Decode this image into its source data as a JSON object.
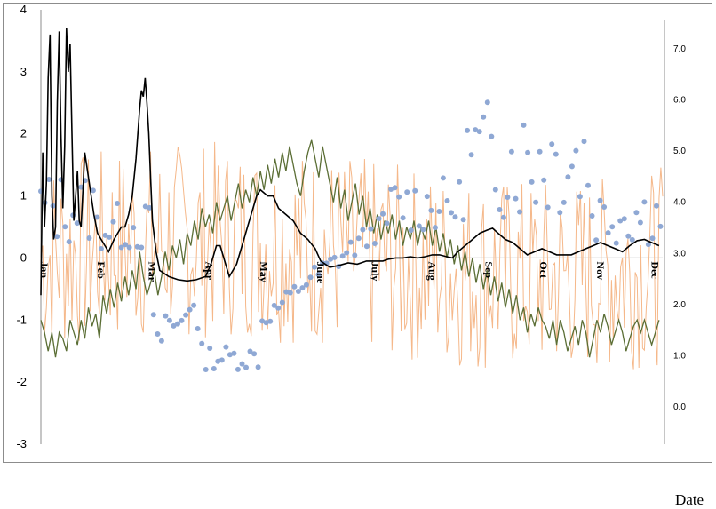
{
  "chart_data": {
    "type": "line",
    "xlabel": "Date",
    "left_axis": {
      "ticks": [
        4,
        3,
        2,
        1,
        0,
        -1,
        -2,
        -3
      ],
      "ylim": [
        -3,
        4
      ]
    },
    "right_axis": {
      "ticks": [
        "7.0",
        "6.0",
        "5.0",
        "4.0",
        "3.0",
        "2.0",
        "1.0",
        "0.0"
      ],
      "ylim": [
        -0.75,
        7.75
      ]
    },
    "months": [
      "Jan",
      "Feb",
      "Mar",
      "Apr",
      "May",
      "June",
      "July",
      "Aug",
      "Sep",
      "Oct",
      "Nov",
      "Dec"
    ],
    "month_start_days": [
      0,
      31,
      59,
      90,
      120,
      151,
      181,
      212,
      243,
      273,
      304,
      334
    ],
    "days_in_year": 365,
    "grid": false,
    "legend": "none",
    "colors": {
      "black_line": "#000000",
      "green_line": "#5b6e35",
      "orange_line": "#f5b88a",
      "dots": "#8fa8d4"
    },
    "series": [
      {
        "axis": "left",
        "style": "line",
        "color": "#000000",
        "points": [
          [
            0,
            -0.6
          ],
          [
            1,
            1.7
          ],
          [
            2,
            0.5
          ],
          [
            3,
            1.2
          ],
          [
            4,
            2.9
          ],
          [
            5,
            3.6
          ],
          [
            6,
            1.0
          ],
          [
            7,
            0.3
          ],
          [
            8,
            0.5
          ],
          [
            9,
            2.5
          ],
          [
            10,
            3.65
          ],
          [
            11,
            2.0
          ],
          [
            12,
            0.8
          ],
          [
            13,
            1.8
          ],
          [
            14,
            3.7
          ],
          [
            15,
            3.0
          ],
          [
            16,
            3.45
          ],
          [
            17,
            2.0
          ],
          [
            18,
            0.6
          ],
          [
            20,
            1.4
          ],
          [
            21,
            0.6
          ],
          [
            22,
            0.5
          ],
          [
            24,
            1.7
          ],
          [
            25,
            1.5
          ],
          [
            27,
            1.1
          ],
          [
            29,
            0.7
          ],
          [
            31,
            0.4
          ],
          [
            33,
            0.3
          ],
          [
            35,
            0.2
          ],
          [
            37,
            0.1
          ],
          [
            40,
            0.3
          ],
          [
            42,
            0.4
          ],
          [
            44,
            0.5
          ],
          [
            46,
            0.5
          ],
          [
            48,
            0.7
          ],
          [
            50,
            1.0
          ],
          [
            52,
            1.6
          ],
          [
            54,
            2.4
          ],
          [
            55,
            2.7
          ],
          [
            56,
            2.6
          ],
          [
            57,
            2.9
          ],
          [
            58,
            2.5
          ],
          [
            59,
            2.0
          ],
          [
            60,
            1.3
          ],
          [
            61,
            0.6
          ],
          [
            63,
            0.1
          ],
          [
            65,
            -0.2
          ],
          [
            70,
            -0.3
          ],
          [
            75,
            -0.35
          ],
          [
            80,
            -0.37
          ],
          [
            85,
            -0.35
          ],
          [
            90,
            -0.3
          ],
          [
            93,
            -0.1
          ],
          [
            96,
            0.2
          ],
          [
            98,
            0.2
          ],
          [
            100,
            0.0
          ],
          [
            103,
            -0.3
          ],
          [
            107,
            -0.1
          ],
          [
            110,
            0.2
          ],
          [
            113,
            0.5
          ],
          [
            116,
            0.8
          ],
          [
            118,
            1.0
          ],
          [
            120,
            1.1
          ],
          [
            124,
            1.0
          ],
          [
            127,
            1.0
          ],
          [
            130,
            0.8
          ],
          [
            134,
            0.7
          ],
          [
            138,
            0.6
          ],
          [
            142,
            0.4
          ],
          [
            146,
            0.3
          ],
          [
            150,
            0.15
          ],
          [
            153,
            -0.05
          ],
          [
            158,
            -0.15
          ],
          [
            163,
            -0.12
          ],
          [
            168,
            -0.08
          ],
          [
            173,
            -0.1
          ],
          [
            178,
            -0.05
          ],
          [
            183,
            -0.05
          ],
          [
            187,
            -0.05
          ],
          [
            190,
            -0.02
          ],
          [
            194,
            0.0
          ],
          [
            198,
            0.0
          ],
          [
            202,
            0.02
          ],
          [
            206,
            0.0
          ],
          [
            210,
            0.02
          ],
          [
            214,
            0.05
          ],
          [
            218,
            0.05
          ],
          [
            222,
            0.02
          ],
          [
            225,
            0.0
          ],
          [
            228,
            0.1
          ],
          [
            232,
            0.2
          ],
          [
            236,
            0.3
          ],
          [
            240,
            0.4
          ],
          [
            244,
            0.45
          ],
          [
            247,
            0.48
          ],
          [
            250,
            0.4
          ],
          [
            254,
            0.3
          ],
          [
            258,
            0.25
          ],
          [
            262,
            0.15
          ],
          [
            266,
            0.05
          ],
          [
            270,
            0.1
          ],
          [
            274,
            0.15
          ],
          [
            278,
            0.1
          ],
          [
            282,
            0.05
          ],
          [
            286,
            0.05
          ],
          [
            290,
            0.05
          ],
          [
            294,
            0.1
          ],
          [
            298,
            0.15
          ],
          [
            302,
            0.2
          ],
          [
            306,
            0.25
          ],
          [
            310,
            0.2
          ],
          [
            314,
            0.15
          ],
          [
            318,
            0.1
          ],
          [
            322,
            0.2
          ],
          [
            326,
            0.28
          ],
          [
            330,
            0.3
          ],
          [
            334,
            0.25
          ],
          [
            338,
            0.2
          ]
        ]
      },
      {
        "axis": "left",
        "style": "line",
        "color": "#5b6e35",
        "points": [
          [
            0,
            -1.0
          ],
          [
            2,
            -1.2
          ],
          [
            4,
            -1.5
          ],
          [
            6,
            -1.2
          ],
          [
            8,
            -1.6
          ],
          [
            10,
            -1.2
          ],
          [
            12,
            -1.3
          ],
          [
            14,
            -1.5
          ],
          [
            16,
            -1.0
          ],
          [
            18,
            -1.2
          ],
          [
            20,
            -1.4
          ],
          [
            22,
            -1.0
          ],
          [
            24,
            -1.3
          ],
          [
            26,
            -0.8
          ],
          [
            28,
            -1.1
          ],
          [
            30,
            -0.9
          ],
          [
            32,
            -1.3
          ],
          [
            34,
            -0.6
          ],
          [
            36,
            -0.9
          ],
          [
            38,
            -0.5
          ],
          [
            40,
            -0.8
          ],
          [
            42,
            -0.4
          ],
          [
            44,
            -0.7
          ],
          [
            46,
            -0.3
          ],
          [
            48,
            -0.6
          ],
          [
            50,
            -0.2
          ],
          [
            52,
            -0.5
          ],
          [
            54,
            0.1
          ],
          [
            56,
            -0.3
          ],
          [
            58,
            -0.6
          ],
          [
            60,
            -0.4
          ],
          [
            62,
            -0.2
          ],
          [
            64,
            -0.6
          ],
          [
            66,
            -0.3
          ],
          [
            68,
            0.1
          ],
          [
            70,
            -0.2
          ],
          [
            72,
            0.2
          ],
          [
            74,
            0.0
          ],
          [
            76,
            0.3
          ],
          [
            78,
            -0.1
          ],
          [
            80,
            0.4
          ],
          [
            82,
            0.2
          ],
          [
            84,
            0.6
          ],
          [
            86,
            0.3
          ],
          [
            88,
            0.8
          ],
          [
            90,
            0.5
          ],
          [
            92,
            0.7
          ],
          [
            94,
            0.4
          ],
          [
            96,
            0.9
          ],
          [
            98,
            0.6
          ],
          [
            100,
            0.8
          ],
          [
            102,
            1.0
          ],
          [
            104,
            0.6
          ],
          [
            106,
            0.9
          ],
          [
            108,
            1.2
          ],
          [
            110,
            0.8
          ],
          [
            112,
            1.1
          ],
          [
            114,
            0.9
          ],
          [
            116,
            1.3
          ],
          [
            118,
            1.0
          ],
          [
            120,
            1.4
          ],
          [
            122,
            1.1
          ],
          [
            124,
            1.5
          ],
          [
            126,
            1.2
          ],
          [
            128,
            1.6
          ],
          [
            130,
            1.3
          ],
          [
            132,
            1.7
          ],
          [
            134,
            1.4
          ],
          [
            136,
            1.8
          ],
          [
            138,
            1.5
          ],
          [
            140,
            1.2
          ],
          [
            142,
            1.0
          ],
          [
            144,
            1.4
          ],
          [
            146,
            1.7
          ],
          [
            148,
            1.9
          ],
          [
            150,
            1.6
          ],
          [
            152,
            1.3
          ],
          [
            154,
            1.8
          ],
          [
            156,
            1.5
          ],
          [
            158,
            1.2
          ],
          [
            160,
            0.9
          ],
          [
            162,
            1.3
          ],
          [
            164,
            0.8
          ],
          [
            166,
            1.1
          ],
          [
            168,
            0.6
          ],
          [
            170,
            0.9
          ],
          [
            172,
            1.2
          ],
          [
            174,
            0.7
          ],
          [
            176,
            1.0
          ],
          [
            178,
            0.5
          ],
          [
            180,
            0.8
          ],
          [
            182,
            0.4
          ],
          [
            184,
            0.7
          ],
          [
            186,
            0.3
          ],
          [
            188,
            0.6
          ],
          [
            190,
            0.4
          ],
          [
            192,
            0.7
          ],
          [
            194,
            0.3
          ],
          [
            196,
            0.6
          ],
          [
            198,
            0.2
          ],
          [
            200,
            0.5
          ],
          [
            202,
            0.3
          ],
          [
            204,
            0.6
          ],
          [
            206,
            0.2
          ],
          [
            208,
            0.5
          ],
          [
            210,
            0.3
          ],
          [
            212,
            0.6
          ],
          [
            214,
            0.2
          ],
          [
            216,
            0.5
          ],
          [
            218,
            0.1
          ],
          [
            220,
            0.4
          ],
          [
            222,
            0.0
          ],
          [
            224,
            0.3
          ],
          [
            226,
            -0.1
          ],
          [
            228,
            0.2
          ],
          [
            230,
            -0.2
          ],
          [
            232,
            0.1
          ],
          [
            234,
            -0.3
          ],
          [
            236,
            0.0
          ],
          [
            238,
            -0.4
          ],
          [
            240,
            -0.1
          ],
          [
            242,
            -0.5
          ],
          [
            244,
            -0.2
          ],
          [
            246,
            -0.6
          ],
          [
            248,
            -0.3
          ],
          [
            250,
            -0.7
          ],
          [
            252,
            -0.4
          ],
          [
            254,
            -0.8
          ],
          [
            256,
            -0.5
          ],
          [
            258,
            -0.9
          ],
          [
            260,
            -0.6
          ],
          [
            262,
            -1.0
          ],
          [
            264,
            -0.8
          ],
          [
            266,
            -1.2
          ],
          [
            268,
            -0.9
          ],
          [
            270,
            -1.1
          ],
          [
            272,
            -0.8
          ],
          [
            274,
            -1.0
          ],
          [
            276,
            -1.1
          ],
          [
            278,
            -1.3
          ],
          [
            280,
            -1.0
          ],
          [
            282,
            -1.4
          ],
          [
            284,
            -1.0
          ],
          [
            286,
            -1.2
          ],
          [
            288,
            -1.5
          ],
          [
            290,
            -1.3
          ],
          [
            292,
            -1.1
          ],
          [
            294,
            -1.4
          ],
          [
            296,
            -1.0
          ],
          [
            298,
            -1.2
          ],
          [
            300,
            -1.6
          ],
          [
            302,
            -1.3
          ],
          [
            304,
            -1.0
          ],
          [
            306,
            -1.2
          ],
          [
            308,
            -0.9
          ],
          [
            310,
            -1.1
          ],
          [
            312,
            -1.4
          ],
          [
            314,
            -1.2
          ],
          [
            316,
            -1.0
          ],
          [
            318,
            -1.2
          ],
          [
            320,
            -1.5
          ],
          [
            322,
            -1.3
          ],
          [
            324,
            -1.1
          ],
          [
            326,
            -1.0
          ],
          [
            328,
            -1.2
          ],
          [
            330,
            -1.0
          ],
          [
            332,
            -1.2
          ],
          [
            334,
            -1.4
          ],
          [
            336,
            -1.2
          ],
          [
            338,
            -1.0
          ]
        ]
      }
    ]
  },
  "x_axis_title": "Date"
}
